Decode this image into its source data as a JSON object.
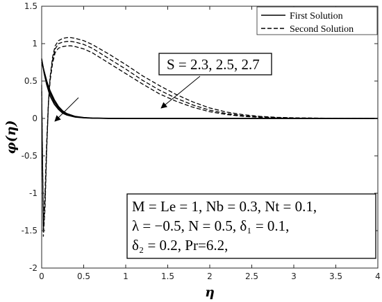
{
  "chart_data": {
    "type": "line",
    "xlabel": "η",
    "ylabel": "φ(η)",
    "xlim": [
      0,
      4
    ],
    "ylim": [
      -2,
      1.5
    ],
    "grid": false,
    "legend_position": "top-right",
    "x_ticks": [
      "0",
      "0.5",
      "1",
      "1.5",
      "2",
      "2.5",
      "3",
      "3.5",
      "4"
    ],
    "y_ticks": [
      "-2",
      "-1.5",
      "-1",
      "-0.5",
      "0",
      "0.5",
      "1",
      "1.5"
    ],
    "legend": [
      {
        "label": "First Solution",
        "style": "solid"
      },
      {
        "label": "Second Solution",
        "style": "dashed"
      }
    ],
    "annotations": [
      {
        "text": "S = 2.3, 2.5, 2.7"
      },
      {
        "lines": [
          "M = Le = 1, Nb = 0.3, Nt = 0.1,",
          "λ = −0.5, N = 0.5, δ₁ = 0.1,",
          "δ₂ = 0.2, Pr=6.2,"
        ]
      }
    ],
    "series": [
      {
        "style": "solid",
        "x": [
          0,
          0.03,
          0.06,
          0.1,
          0.15,
          0.2,
          0.25,
          0.3,
          0.4,
          0.5,
          0.6,
          0.8,
          1,
          1.5,
          2,
          3,
          4
        ],
        "y": [
          0.8,
          0.6,
          0.45,
          0.3,
          0.19,
          0.12,
          0.07,
          0.045,
          0.018,
          0.008,
          0.004,
          0.001,
          0.0003,
          0,
          0,
          0,
          0
        ]
      },
      {
        "style": "solid",
        "x": [
          0,
          0.03,
          0.06,
          0.1,
          0.15,
          0.2,
          0.25,
          0.3,
          0.4,
          0.5,
          0.6,
          0.8,
          1,
          1.5,
          2,
          3,
          4
        ],
        "y": [
          0.78,
          0.62,
          0.48,
          0.34,
          0.22,
          0.14,
          0.09,
          0.055,
          0.022,
          0.01,
          0.005,
          0.001,
          0.0003,
          0,
          0,
          0,
          0
        ]
      },
      {
        "style": "solid",
        "x": [
          0,
          0.03,
          0.06,
          0.1,
          0.15,
          0.2,
          0.25,
          0.3,
          0.4,
          0.5,
          0.6,
          0.8,
          1,
          1.5,
          2,
          3,
          4
        ],
        "y": [
          0.75,
          0.63,
          0.5,
          0.37,
          0.25,
          0.16,
          0.1,
          0.065,
          0.027,
          0.012,
          0.006,
          0.0015,
          0.0004,
          0,
          0,
          0,
          0
        ]
      },
      {
        "style": "dashed",
        "x": [
          0,
          0.02,
          0.04,
          0.06,
          0.08,
          0.1,
          0.13,
          0.16,
          0.2,
          0.25,
          0.3,
          0.35,
          0.4,
          0.5,
          0.6,
          0.8,
          1,
          1.2,
          1.4,
          1.6,
          1.8,
          2,
          2.2,
          2.4,
          2.6,
          2.8,
          3,
          3.5,
          4
        ],
        "y": [
          0.45,
          -1.58,
          -1.2,
          -0.4,
          0.2,
          0.55,
          0.82,
          0.97,
          1.04,
          1.07,
          1.08,
          1.08,
          1.07,
          1.04,
          0.99,
          0.86,
          0.72,
          0.57,
          0.44,
          0.32,
          0.22,
          0.14,
          0.085,
          0.05,
          0.028,
          0.015,
          0.008,
          0.002,
          0
        ]
      },
      {
        "style": "dashed",
        "x": [
          0,
          0.02,
          0.04,
          0.06,
          0.08,
          0.1,
          0.13,
          0.16,
          0.2,
          0.25,
          0.3,
          0.35,
          0.4,
          0.5,
          0.6,
          0.8,
          1,
          1.2,
          1.4,
          1.6,
          1.8,
          2,
          2.2,
          2.4,
          2.6,
          2.8,
          3,
          3.5,
          4
        ],
        "y": [
          0.4,
          -1.5,
          -1.1,
          -0.35,
          0.2,
          0.52,
          0.78,
          0.93,
          1.0,
          1.02,
          1.03,
          1.03,
          1.02,
          0.99,
          0.94,
          0.8,
          0.66,
          0.51,
          0.38,
          0.27,
          0.18,
          0.11,
          0.065,
          0.037,
          0.02,
          0.011,
          0.006,
          0.001,
          0
        ]
      },
      {
        "style": "dashed",
        "x": [
          0,
          0.02,
          0.04,
          0.06,
          0.08,
          0.1,
          0.13,
          0.16,
          0.2,
          0.25,
          0.3,
          0.35,
          0.4,
          0.5,
          0.6,
          0.8,
          1,
          1.2,
          1.4,
          1.6,
          1.8,
          2,
          2.2,
          2.4,
          2.6,
          2.8,
          3,
          3.5,
          4
        ],
        "y": [
          0.35,
          -1.4,
          -1.0,
          -0.3,
          0.2,
          0.5,
          0.74,
          0.88,
          0.94,
          0.96,
          0.97,
          0.97,
          0.96,
          0.93,
          0.88,
          0.74,
          0.6,
          0.46,
          0.33,
          0.23,
          0.15,
          0.09,
          0.052,
          0.028,
          0.015,
          0.008,
          0.004,
          0.001,
          0
        ]
      }
    ]
  }
}
